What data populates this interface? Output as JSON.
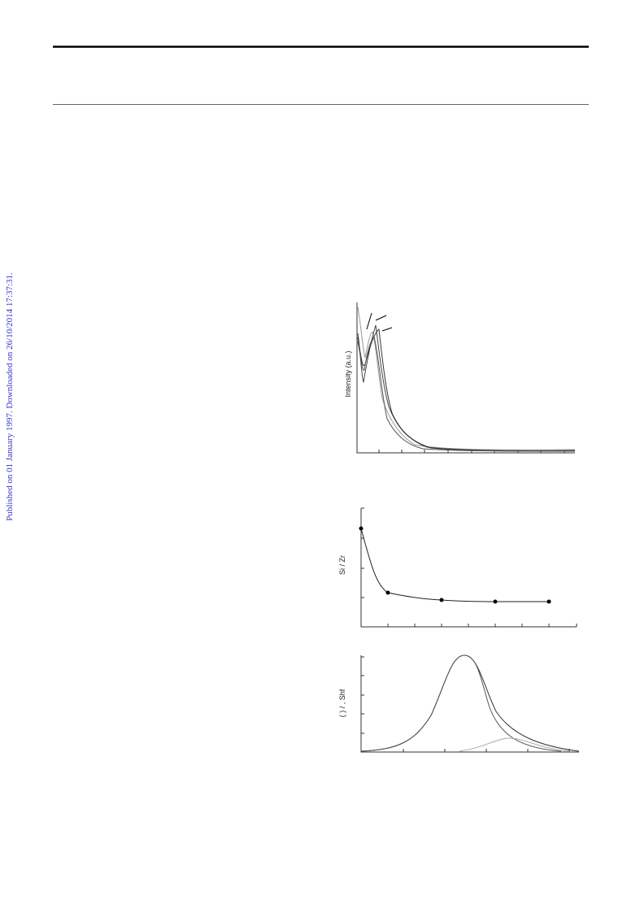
{
  "side_note": "Published on 01 January 1997. Downloaded on 26/10/2014 17:37:31.",
  "figures": [
    {
      "y_label": "Intensity (a.u.)"
    },
    {
      "y_label": "Si / Zr"
    },
    {
      "y_label": "( ) / , Shf"
    }
  ]
}
